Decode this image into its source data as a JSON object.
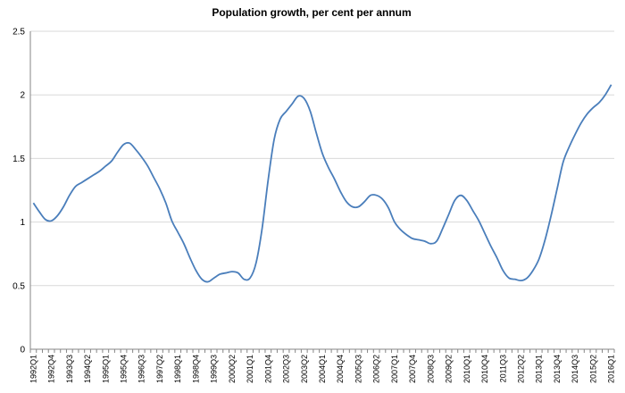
{
  "chart_data": {
    "type": "line",
    "title": "Population growth, per cent per annum",
    "xlabel": "",
    "ylabel": "",
    "ylim": [
      0,
      2.5
    ],
    "yticks": [
      0,
      0.5,
      1,
      1.5,
      2,
      2.5
    ],
    "ytick_labels": [
      "0",
      "0.5",
      "1",
      "1.5",
      "2",
      "2.5"
    ],
    "grid": "horizontal",
    "colors": {
      "line": "#4a7ebb",
      "grid": "#d9d9d9",
      "axis": "#868686"
    },
    "x_start": "1992Q1",
    "x_end": "2016Q1",
    "xtick_labels": [
      "1992Q1",
      "1992Q4",
      "1993Q3",
      "1994Q2",
      "1995Q1",
      "1995Q4",
      "1996Q3",
      "1997Q2",
      "1998Q1",
      "1998Q4",
      "1999Q3",
      "2000Q2",
      "2001Q1",
      "2001Q4",
      "2002Q3",
      "2003Q2",
      "2004Q1",
      "2004Q4",
      "2005Q3",
      "2006Q2",
      "2007Q1",
      "2007Q4",
      "2008Q3",
      "2009Q2",
      "2010Q1",
      "2010Q4",
      "2011Q3",
      "2012Q2",
      "2013Q1",
      "2013Q4",
      "2014Q3",
      "2015Q2",
      "2016Q1"
    ],
    "series": [
      {
        "name": "Population growth",
        "values": [
          1.15,
          1.08,
          1.02,
          1.01,
          1.05,
          1.12,
          1.21,
          1.28,
          1.31,
          1.34,
          1.37,
          1.4,
          1.44,
          1.48,
          1.55,
          1.61,
          1.62,
          1.57,
          1.51,
          1.44,
          1.35,
          1.26,
          1.15,
          1.01,
          0.92,
          0.83,
          0.72,
          0.62,
          0.55,
          0.53,
          0.56,
          0.59,
          0.6,
          0.61,
          0.6,
          0.55,
          0.56,
          0.68,
          0.95,
          1.33,
          1.65,
          1.81,
          1.87,
          1.93,
          1.99,
          1.97,
          1.87,
          1.7,
          1.54,
          1.43,
          1.34,
          1.24,
          1.16,
          1.12,
          1.12,
          1.16,
          1.21,
          1.21,
          1.18,
          1.11,
          1.0,
          0.94,
          0.9,
          0.87,
          0.86,
          0.85,
          0.83,
          0.85,
          0.95,
          1.06,
          1.17,
          1.21,
          1.17,
          1.09,
          1.01,
          0.91,
          0.81,
          0.72,
          0.62,
          0.56,
          0.55,
          0.54,
          0.56,
          0.62,
          0.71,
          0.86,
          1.05,
          1.26,
          1.47,
          1.59,
          1.69,
          1.78,
          1.85,
          1.9,
          1.94,
          2.0,
          2.08
        ]
      }
    ]
  }
}
